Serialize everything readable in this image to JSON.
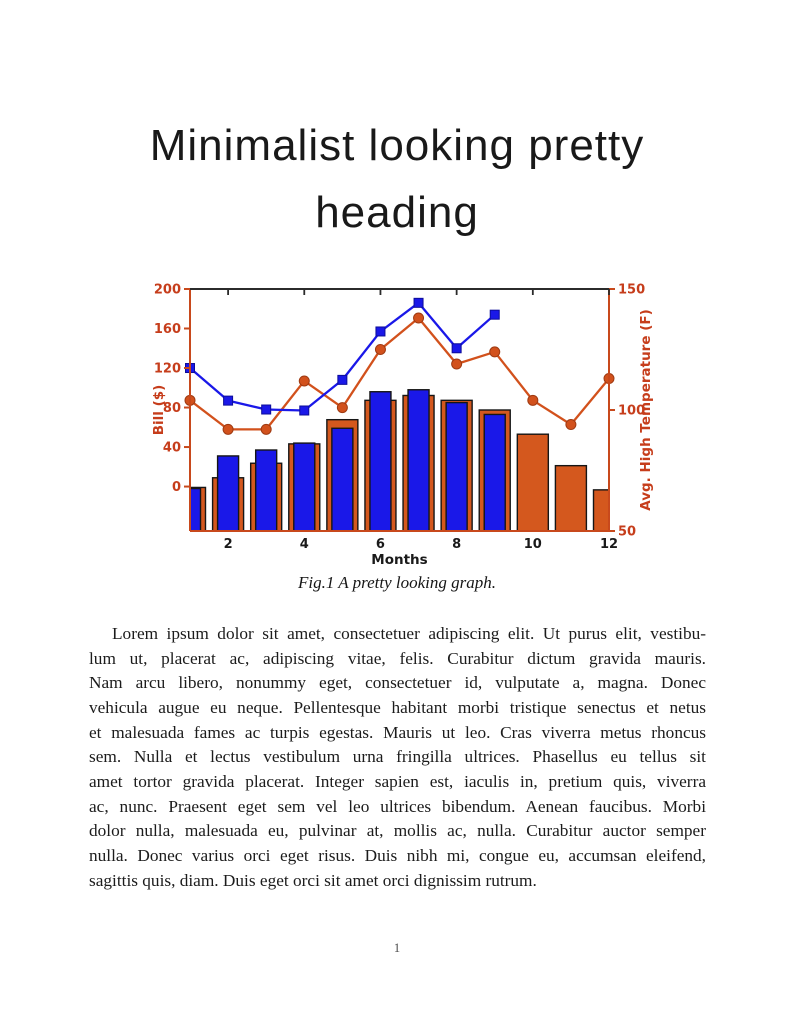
{
  "heading": {
    "line1": "Minimalist looking pretty",
    "line2": "heading"
  },
  "figure": {
    "caption": "Fig.1 A pretty looking graph."
  },
  "chart_data": {
    "type": "bar+line",
    "title": "",
    "x_axis": {
      "label": "Months",
      "range": [
        1,
        12
      ],
      "ticks": [
        2,
        4,
        6,
        8,
        10,
        12
      ]
    },
    "left_axis": {
      "label": "Bill ($)",
      "range": [
        -45,
        200
      ],
      "ticks": [
        0,
        40,
        80,
        120,
        160,
        200
      ],
      "color": "#c63d1b"
    },
    "right_axis": {
      "label": "Avg. High Temperature (F)",
      "range": [
        50,
        150
      ],
      "ticks": [
        50,
        100,
        150
      ],
      "color": "#c63d1b"
    },
    "months": [
      1,
      2,
      3,
      4,
      5,
      6,
      7,
      8,
      9,
      10,
      11,
      12
    ],
    "bar_baseline": "plot-bottom",
    "legend": "none",
    "grid": false,
    "series": [
      {
        "name": "temperature-bars",
        "type": "bar",
        "axis": "right",
        "color": "#d4581e",
        "edge": "#161616",
        "months": [
          1,
          2,
          3,
          4,
          5,
          6,
          7,
          8,
          9,
          10,
          11,
          12
        ],
        "values": [
          68,
          72,
          78,
          86,
          96,
          104,
          106,
          104,
          100,
          90,
          77,
          67
        ]
      },
      {
        "name": "bill-bars",
        "type": "bar",
        "axis": "left",
        "color": "#1a18e8",
        "edge": "#161616",
        "months": [
          1,
          2,
          3,
          4,
          5,
          6,
          7,
          8,
          9
        ],
        "values": [
          -2,
          31,
          37,
          44,
          59,
          96,
          98,
          85,
          73
        ]
      },
      {
        "name": "temperature-line",
        "type": "line",
        "marker": "circle",
        "axis": "right",
        "color": "#d2511c",
        "marker_edge": "#9e3a12",
        "months": [
          1,
          2,
          3,
          4,
          5,
          6,
          7,
          8,
          9,
          10,
          11,
          12
        ],
        "values": [
          104,
          92,
          92,
          112,
          101,
          125,
          138,
          119,
          124,
          104,
          94,
          113
        ]
      },
      {
        "name": "bill-line",
        "type": "line",
        "marker": "square",
        "axis": "left",
        "color": "#1a18e8",
        "marker_edge": "#0d0d99",
        "months": [
          1,
          2,
          3,
          4,
          5,
          6,
          7,
          8,
          9
        ],
        "values": [
          120,
          87,
          78,
          77,
          108,
          157,
          186,
          140,
          174
        ]
      }
    ],
    "spine_colors": {
      "left": "#c8491c",
      "right": "#c8491c",
      "bottom": "#c8491c",
      "top": "#2b2b2b"
    },
    "tick_label_color_x": "#1a1a1a"
  },
  "body": {
    "lines": [
      "Lorem ipsum dolor sit amet, consectetuer adipiscing elit.  Ut purus elit, vestibu-",
      "lum ut, placerat ac, adipiscing vitae, felis.  Curabitur dictum gravida mauris.",
      "Nam arcu libero, nonummy eget, consectetuer id, vulputate a, magna.  Donec",
      "vehicula augue eu neque. Pellentesque habitant morbi tristique senectus et netus",
      "et malesuada fames ac turpis egestas. Mauris ut leo. Cras viverra metus rhoncus",
      "sem.  Nulla et lectus vestibulum urna fringilla ultrices.  Phasellus eu tellus sit",
      "amet tortor gravida placerat. Integer sapien est, iaculis in, pretium quis, viverra",
      "ac, nunc. Praesent eget sem vel leo ultrices bibendum.  Aenean faucibus.  Morbi",
      "dolor nulla, malesuada eu, pulvinar at, mollis ac, nulla.  Curabitur auctor semper",
      "nulla.  Donec varius orci eget risus.  Duis nibh mi, congue eu, accumsan eleifend,",
      "sagittis quis, diam.  Duis eget orci sit amet orci dignissim rutrum."
    ]
  },
  "footer": {
    "page_number": "1"
  }
}
